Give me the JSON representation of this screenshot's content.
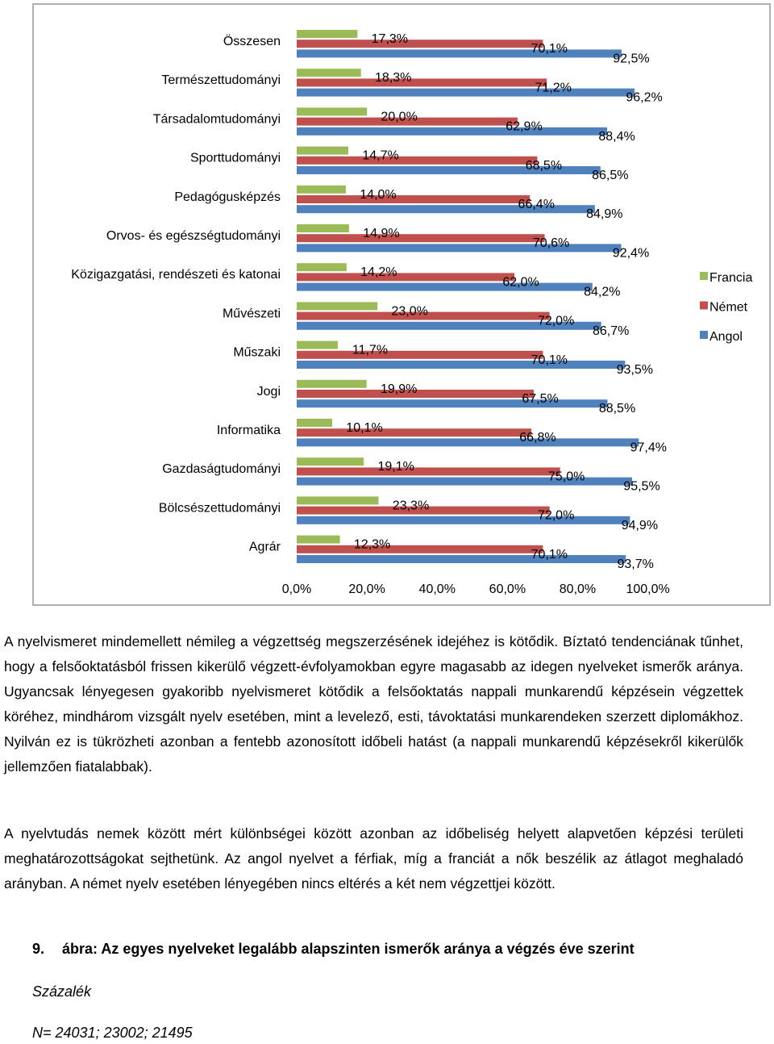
{
  "chart_data": {
    "type": "bar",
    "orientation": "horizontal",
    "categories": [
      "Összesen",
      "Természettudományi",
      "Társadalomtudományi",
      "Sporttudományi",
      "Pedagógusképzés",
      "Orvos- és egészségtudományi",
      "Közigazgatási, rendészeti és katonai",
      "Művészeti",
      "Műszaki",
      "Jogi",
      "Informatika",
      "Gazdaságtudományi",
      "Bölcsészettudományi",
      "Agrár"
    ],
    "series": [
      {
        "name": "Francia",
        "color": "#9bbb59",
        "values": [
          17.3,
          18.3,
          20.0,
          14.7,
          14.0,
          14.9,
          14.2,
          23.0,
          11.7,
          19.9,
          10.1,
          19.1,
          23.3,
          12.3
        ],
        "labels": [
          "17,3%",
          "18,3%",
          "20,0%",
          "14,7%",
          "14,0%",
          "14,9%",
          "14,2%",
          "23,0%",
          "11,7%",
          "19,9%",
          "10,1%",
          "19,1%",
          "23,3%",
          "12,3%"
        ]
      },
      {
        "name": "Német",
        "color": "#c0504d",
        "values": [
          70.1,
          71.2,
          62.9,
          68.5,
          66.4,
          70.6,
          62.0,
          72.0,
          70.1,
          67.5,
          66.8,
          75.0,
          72.0,
          70.1
        ],
        "labels": [
          "70,1%",
          "71,2%",
          "62,9%",
          "68,5%",
          "66,4%",
          "70,6%",
          "62,0%",
          "72,0%",
          "70,1%",
          "67,5%",
          "66,8%",
          "75,0%",
          "72,0%",
          "70,1%"
        ]
      },
      {
        "name": "Angol",
        "color": "#4f81bd",
        "values": [
          92.5,
          96.2,
          88.4,
          86.5,
          84.9,
          92.4,
          84.2,
          86.7,
          93.5,
          88.5,
          97.4,
          95.5,
          94.9,
          93.7
        ],
        "labels": [
          "92,5%",
          "96,2%",
          "88,4%",
          "86,5%",
          "84,9%",
          "92,4%",
          "84,2%",
          "86,7%",
          "93,5%",
          "88,5%",
          "97,4%",
          "95,5%",
          "94,9%",
          "93,7%"
        ]
      }
    ],
    "xlim": [
      0,
      100
    ],
    "x_ticks": [
      "0,0%",
      "20,0%",
      "40,0%",
      "60,0%",
      "80,0%",
      "100,0%"
    ],
    "legend_position": "right",
    "grid": false
  },
  "text": {
    "paragraph1": "A nyelvismeret mindemellett némileg a végzettség megszerzésének idejéhez is kötődik. Bíztató tendenciának tűnhet, hogy a felsőoktatásból frissen kikerülő végzett-évfolyamokban egyre magasabb az idegen nyelveket ismerők aránya. Ugyancsak lényegesen gyakoribb nyelvismeret kötődik a felsőoktatás nappali munkarendű képzésein végzettek köréhez, mindhárom vizsgált nyelv esetében, mint a levelező, esti, távoktatási munkarendeken szerzett diplomákhoz. Nyilván ez is tükrözheti azonban a fentebb azonosított időbeli hatást (a nappali munkarendű képzésekről kikerülők jellemzően fiatalabbak).",
    "paragraph2": "A nyelvtudás nemek között mért különbségei között azonban az időbeliség helyett alapvetően képzési területi meghatározottságokat sejthetünk. Az angol nyelvet a férfiak, míg a franciát a nők beszélik az átlagot meghaladó arányban. A német nyelv esetében lényegében nincs eltérés a két nem végzettjei között.",
    "caption_number": "9.",
    "caption_text": "ábra: Az egyes nyelveket legalább alapszinten ismerők aránya a végzés éve szerint",
    "unit": "Százalék",
    "sample": "N= 24031; 23002; 21495"
  }
}
